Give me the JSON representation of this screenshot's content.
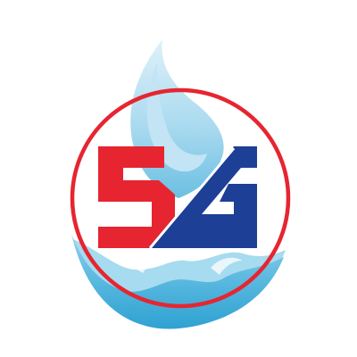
{
  "logo": {
    "lettering": "5G",
    "colors": {
      "background": "#ffffff",
      "ring": "#e62530",
      "digit": "#e62530",
      "letter": "#1d3f95",
      "flame_light": "#cfe9f6",
      "flame_mid": "#93cfea",
      "flame_dark": "#3aa7d4"
    }
  }
}
